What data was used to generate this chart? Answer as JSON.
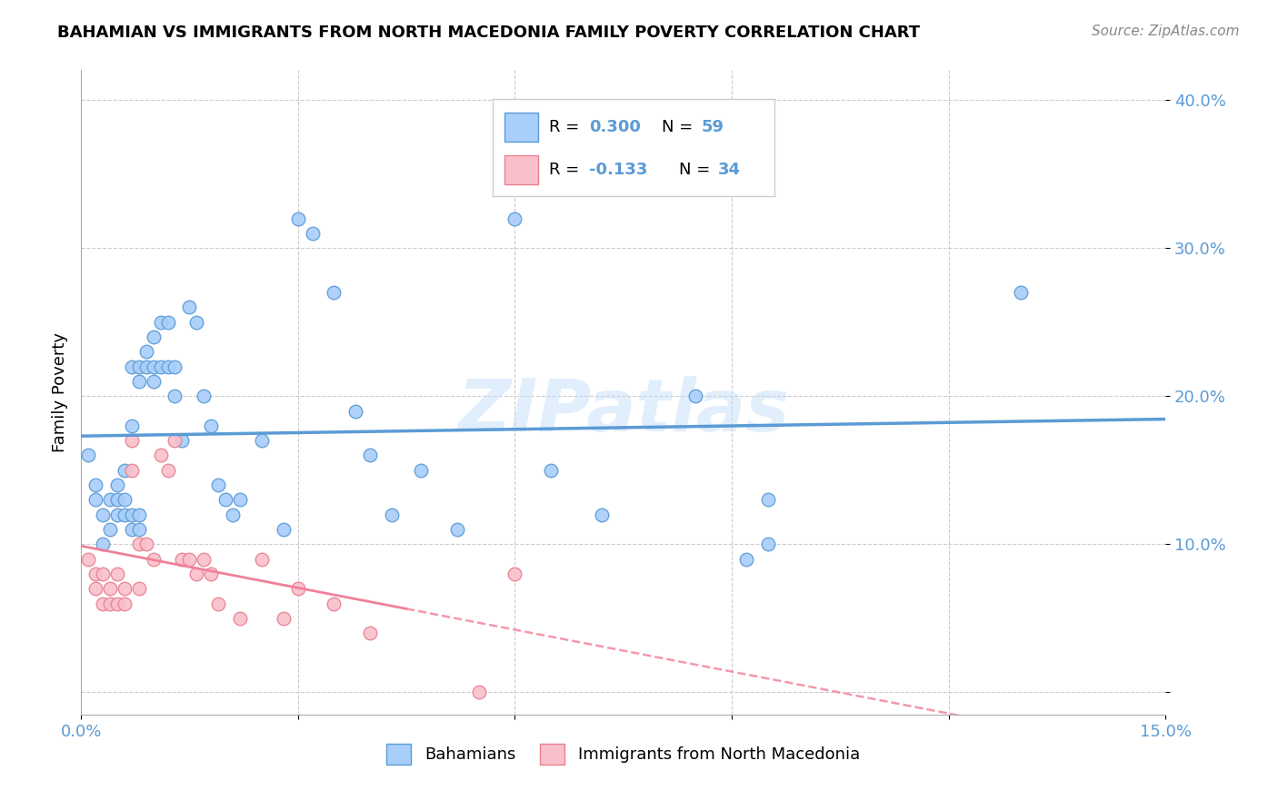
{
  "title": "BAHAMIAN VS IMMIGRANTS FROM NORTH MACEDONIA FAMILY POVERTY CORRELATION CHART",
  "source": "Source: ZipAtlas.com",
  "ylabel": "Family Poverty",
  "xlim": [
    0.0,
    0.15
  ],
  "ylim": [
    -0.015,
    0.42
  ],
  "xtick_vals": [
    0.0,
    0.03,
    0.06,
    0.09,
    0.12,
    0.15
  ],
  "xticklabels": [
    "0.0%",
    "",
    "",
    "",
    "",
    "15.0%"
  ],
  "ytick_vals": [
    0.0,
    0.1,
    0.2,
    0.3,
    0.4
  ],
  "yticklabels": [
    "",
    "10.0%",
    "20.0%",
    "30.0%",
    "40.0%"
  ],
  "blue_fill": "#A8CEFA",
  "blue_edge": "#5B9BD5",
  "pink_fill": "#F9C0CB",
  "pink_edge": "#E88090",
  "blue_line_color": "#5B9BD5",
  "pink_line_color": "#F08098",
  "watermark": "ZIPatlas",
  "legend_label1": "Bahamians",
  "legend_label2": "Immigrants from North Macedonia",
  "blue_scatter_x": [
    0.001,
    0.002,
    0.002,
    0.003,
    0.003,
    0.004,
    0.004,
    0.005,
    0.005,
    0.005,
    0.006,
    0.006,
    0.006,
    0.007,
    0.007,
    0.007,
    0.007,
    0.008,
    0.008,
    0.008,
    0.008,
    0.009,
    0.009,
    0.01,
    0.01,
    0.01,
    0.011,
    0.011,
    0.012,
    0.012,
    0.013,
    0.013,
    0.014,
    0.015,
    0.016,
    0.017,
    0.018,
    0.019,
    0.02,
    0.021,
    0.022,
    0.025,
    0.028,
    0.03,
    0.032,
    0.035,
    0.038,
    0.04,
    0.043,
    0.047,
    0.052,
    0.06,
    0.065,
    0.072,
    0.085,
    0.092,
    0.095,
    0.13,
    0.095
  ],
  "blue_scatter_y": [
    0.16,
    0.14,
    0.13,
    0.12,
    0.1,
    0.11,
    0.13,
    0.12,
    0.13,
    0.14,
    0.12,
    0.13,
    0.15,
    0.11,
    0.12,
    0.18,
    0.22,
    0.11,
    0.12,
    0.21,
    0.22,
    0.22,
    0.23,
    0.21,
    0.22,
    0.24,
    0.22,
    0.25,
    0.22,
    0.25,
    0.2,
    0.22,
    0.17,
    0.26,
    0.25,
    0.2,
    0.18,
    0.14,
    0.13,
    0.12,
    0.13,
    0.17,
    0.11,
    0.32,
    0.31,
    0.27,
    0.19,
    0.16,
    0.12,
    0.15,
    0.11,
    0.32,
    0.15,
    0.12,
    0.2,
    0.09,
    0.13,
    0.27,
    0.1
  ],
  "pink_scatter_x": [
    0.001,
    0.002,
    0.002,
    0.003,
    0.003,
    0.004,
    0.004,
    0.005,
    0.005,
    0.006,
    0.006,
    0.007,
    0.007,
    0.008,
    0.008,
    0.009,
    0.01,
    0.011,
    0.012,
    0.013,
    0.014,
    0.015,
    0.016,
    0.017,
    0.018,
    0.019,
    0.022,
    0.025,
    0.028,
    0.03,
    0.035,
    0.04,
    0.055,
    0.06
  ],
  "pink_scatter_y": [
    0.09,
    0.08,
    0.07,
    0.08,
    0.06,
    0.07,
    0.06,
    0.08,
    0.06,
    0.06,
    0.07,
    0.17,
    0.15,
    0.1,
    0.07,
    0.1,
    0.09,
    0.16,
    0.15,
    0.17,
    0.09,
    0.09,
    0.08,
    0.09,
    0.08,
    0.06,
    0.05,
    0.09,
    0.05,
    0.07,
    0.06,
    0.04,
    0.0,
    0.08
  ]
}
